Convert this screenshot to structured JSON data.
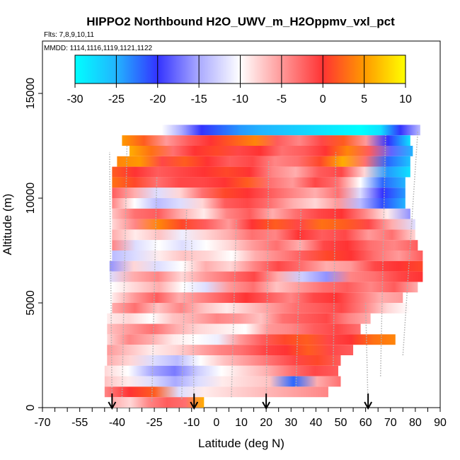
{
  "chart_data": {
    "type": "heatmap",
    "title": "HIPPO2 Northbound H2O_UWV_m_H2Oppmv_vxl_pct",
    "subtitle_flights": "Flts: 7,8,9,10,11",
    "subtitle_dates": "MMDD: 1114,1116,1119,1121,1122",
    "xlabel": "Latitude (deg N)",
    "ylabel": "Altitude (m)",
    "xlim": [
      -70,
      90
    ],
    "ylim": [
      0,
      17500
    ],
    "x_ticks": [
      -70,
      -55,
      -40,
      -25,
      -10,
      0,
      10,
      20,
      30,
      40,
      50,
      60,
      70,
      80,
      90
    ],
    "y_ticks": [
      0,
      5000,
      10000,
      15000
    ],
    "colorbar": {
      "min": -30,
      "max": 10,
      "ticks": [
        -30,
        -25,
        -20,
        -15,
        -10,
        -5,
        0,
        5,
        10
      ],
      "stops": [
        {
          "value": -30,
          "color": "#00ffff"
        },
        {
          "value": -25,
          "color": "#22b4ff"
        },
        {
          "value": -20,
          "color": "#3333ff"
        },
        {
          "value": -15,
          "color": "#aaaaff"
        },
        {
          "value": -10,
          "color": "#ffffff"
        },
        {
          "value": -5,
          "color": "#ff9999"
        },
        {
          "value": 0,
          "color": "#ff3333"
        },
        {
          "value": 5,
          "color": "#ff9900"
        },
        {
          "value": 10,
          "color": "#ffff00"
        }
      ]
    },
    "arrow_latitudes": [
      -42,
      -9,
      20,
      61
    ],
    "band_height_m": 500,
    "bands": [
      {
        "alt": 13250,
        "lat0": -22,
        "lat1": 82,
        "vals": [
          -10,
          -15,
          -20,
          -22,
          -24,
          -25,
          -26,
          -27,
          -28,
          -29,
          -30,
          -28,
          -20,
          -14
        ]
      },
      {
        "alt": 12750,
        "lat0": -38,
        "lat1": 78,
        "vals": [
          5,
          2,
          -5,
          -2,
          0,
          2,
          4,
          -2,
          -4,
          -1,
          2,
          -5,
          -20,
          -28
        ]
      },
      {
        "alt": 12250,
        "lat0": -35,
        "lat1": 79,
        "vals": [
          6,
          3,
          -3,
          0,
          1,
          -1,
          0,
          -3,
          -2,
          0,
          4,
          -2,
          -18,
          -25
        ]
      },
      {
        "alt": 11750,
        "lat0": -40,
        "lat1": 78,
        "vals": [
          4,
          5,
          -1,
          2,
          0,
          -2,
          -1,
          -4,
          -3,
          1,
          6,
          -3,
          -22,
          -26
        ]
      },
      {
        "alt": 11250,
        "lat0": -42,
        "lat1": 78,
        "vals": [
          2,
          0,
          -2,
          -1,
          0,
          1,
          0,
          -4,
          -6,
          -2,
          -1,
          -8,
          -24,
          -28
        ]
      },
      {
        "alt": 10750,
        "lat0": -42,
        "lat1": 76,
        "vals": [
          3,
          1,
          -3,
          -1,
          -1,
          0,
          2,
          -3,
          -5,
          -1,
          -3,
          -10,
          -22,
          -25
        ]
      },
      {
        "alt": 10250,
        "lat0": -42,
        "lat1": 76,
        "vals": [
          -2,
          -6,
          -12,
          -8,
          -3,
          1,
          0,
          -2,
          -4,
          -6,
          -3,
          -12,
          -20,
          -24
        ]
      },
      {
        "alt": 9750,
        "lat0": -42,
        "lat1": 76,
        "vals": [
          -4,
          -10,
          -14,
          -12,
          -8,
          -2,
          -1,
          -3,
          -6,
          -8,
          -5,
          -14,
          -21,
          -25
        ]
      },
      {
        "alt": 9250,
        "lat0": -42,
        "lat1": 78,
        "vals": [
          -7,
          -3,
          -2,
          -6,
          -9,
          -4,
          -2,
          -6,
          -3,
          -1,
          0,
          -4,
          -9,
          -16
        ]
      },
      {
        "alt": 8750,
        "lat0": -42,
        "lat1": 80,
        "vals": [
          -8,
          -4,
          4,
          1,
          -2,
          -5,
          0,
          2,
          -1,
          3,
          2,
          -1,
          -6,
          -12
        ]
      },
      {
        "alt": 8250,
        "lat0": -42,
        "lat1": 80,
        "vals": [
          -6,
          -9,
          -7,
          -11,
          -8,
          -6,
          -3,
          -4,
          0,
          -2,
          -1,
          -5,
          -3,
          -8
        ]
      },
      {
        "alt": 7750,
        "lat0": -42,
        "lat1": 81,
        "vals": [
          -4,
          -12,
          -10,
          -12,
          -10,
          -8,
          -5,
          -3,
          -6,
          -1,
          0,
          -3,
          -4,
          -2
        ]
      },
      {
        "alt": 7250,
        "lat0": -42,
        "lat1": 83,
        "vals": [
          -14,
          -12,
          -9,
          -7,
          -8,
          -10,
          -6,
          -4,
          -2,
          1,
          0,
          -3,
          -5,
          -2
        ]
      },
      {
        "alt": 6750,
        "lat0": -43,
        "lat1": 83,
        "vals": [
          -16,
          -8,
          -12,
          -10,
          -6,
          -8,
          -4,
          -1,
          -3,
          -6,
          -5,
          -1,
          0,
          1
        ]
      },
      {
        "alt": 6250,
        "lat0": -43,
        "lat1": 83,
        "vals": [
          -12,
          -6,
          -4,
          -8,
          -5,
          -3,
          -1,
          -6,
          -13,
          -16,
          -4,
          -3,
          -1,
          0
        ]
      },
      {
        "alt": 5750,
        "lat0": -42,
        "lat1": 81,
        "vals": [
          -10,
          -8,
          -6,
          -10,
          -12,
          -5,
          -3,
          -7,
          -5,
          -3,
          -2,
          -4,
          -2,
          -6
        ]
      },
      {
        "alt": 5250,
        "lat0": -42,
        "lat1": 75,
        "vals": [
          -9,
          -5,
          -2,
          -6,
          -4,
          -2,
          0,
          -2,
          -4,
          -1,
          0,
          -3,
          -6,
          -5
        ]
      },
      {
        "alt": 4750,
        "lat0": -42,
        "lat1": 78,
        "vals": [
          -6,
          -3,
          -7,
          -4,
          -7,
          -9,
          -7,
          -5,
          -3,
          -2,
          -1,
          -4,
          -8,
          -10
        ]
      },
      {
        "alt": 4250,
        "lat0": -44,
        "lat1": 62,
        "vals": [
          -9,
          -8,
          -10,
          -7,
          -6,
          -4,
          -5,
          -7,
          -3,
          -2,
          -1,
          -4,
          -6
        ]
      },
      {
        "alt": 3750,
        "lat0": -44,
        "lat1": 58,
        "vals": [
          -7,
          -5,
          -3,
          -6,
          -8,
          -9,
          -10,
          -5,
          -4,
          -2,
          -1,
          -3
        ]
      },
      {
        "alt": 3250,
        "lat0": -44,
        "lat1": 72,
        "vals": [
          -8,
          -4,
          -6,
          -9,
          -10,
          -11,
          -5,
          -2,
          1,
          2,
          -1,
          0,
          3,
          4
        ]
      },
      {
        "alt": 2750,
        "lat0": -44,
        "lat1": 55,
        "vals": [
          -5,
          -7,
          -9,
          -8,
          -6,
          -4,
          -3,
          -1,
          0,
          2,
          -1,
          -2
        ]
      },
      {
        "alt": 2250,
        "lat0": -44,
        "lat1": 50,
        "vals": [
          -6,
          -8,
          -12,
          -14,
          -10,
          -7,
          -5,
          -3,
          -1,
          1,
          -2
        ]
      },
      {
        "alt": 1750,
        "lat0": -45,
        "lat1": 49,
        "vals": [
          -8,
          -10,
          -15,
          -17,
          -13,
          -10,
          -8,
          -6,
          -3,
          -1,
          -2
        ]
      },
      {
        "alt": 1250,
        "lat0": -45,
        "lat1": 50,
        "vals": [
          -7,
          -9,
          -12,
          -15,
          -12,
          -9,
          -8,
          -7,
          -22,
          -6,
          -3
        ]
      },
      {
        "alt": 750,
        "lat0": -45,
        "lat1": 45,
        "vals": [
          -4,
          0,
          2,
          -12,
          -9,
          -8,
          -7,
          -6,
          -5,
          -4
        ]
      },
      {
        "alt": 250,
        "lat0": -42,
        "lat1": -5,
        "vals": [
          -6,
          -8,
          -4,
          -2,
          -3,
          6
        ]
      }
    ]
  }
}
